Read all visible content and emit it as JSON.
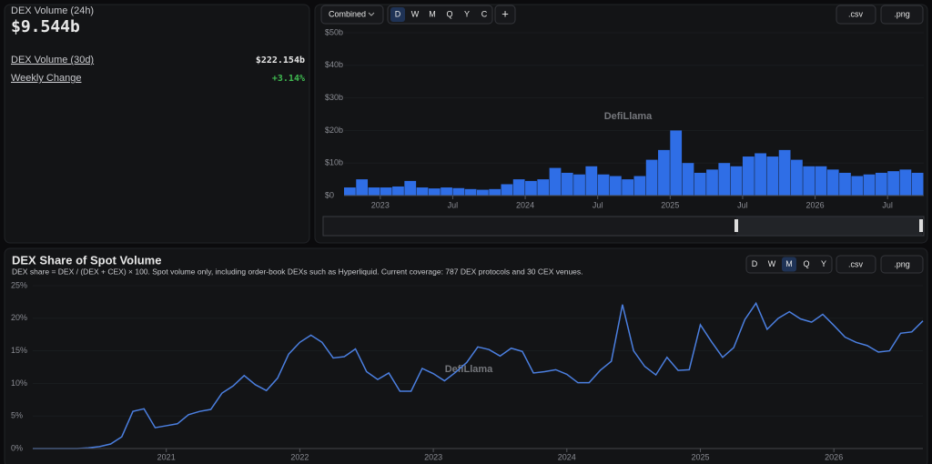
{
  "stats": {
    "label": "DEX Volume (24h)",
    "value": "$9.544b",
    "rows": [
      {
        "label": "DEX Volume (30d)",
        "value": "$222.154b"
      },
      {
        "label": "Weekly Change",
        "value": "+3.14%"
      }
    ]
  },
  "toolbar": {
    "dropdown": "Combined",
    "periods": [
      "D",
      "W",
      "M",
      "Q",
      "Y",
      "C"
    ],
    "selected": "D",
    "add": "+",
    "exports": [
      ".csv",
      ".png"
    ]
  },
  "watermark": "DefiLlama",
  "chart_data": [
    {
      "type": "bar",
      "color": "#2f6ee6",
      "x": [
        "2022-10",
        "2022-11",
        "2022-12",
        "2023-01",
        "2023-02",
        "2023-03",
        "2023-04",
        "2023-05",
        "2023-06",
        "2023-07",
        "2023-08",
        "2023-09",
        "2023-10",
        "2023-11",
        "2023-12",
        "2024-01",
        "2024-02",
        "2024-03",
        "2024-04",
        "2024-05",
        "2024-06",
        "2024-07",
        "2024-08",
        "2024-09",
        "2024-10",
        "2024-11",
        "2024-12",
        "2025-01",
        "2025-02",
        "2025-03",
        "2025-04",
        "2025-05",
        "2025-06",
        "2025-07",
        "2025-08",
        "2025-09",
        "2025-10",
        "2025-11",
        "2025-12",
        "2026-01",
        "2026-02",
        "2026-03",
        "2026-04",
        "2026-05",
        "2026-06",
        "2026-07",
        "2026-08",
        "2026-09"
      ],
      "values": [
        2.5,
        5,
        2.5,
        2.5,
        2.8,
        4.5,
        2.5,
        2.2,
        2.5,
        2.3,
        2,
        1.8,
        2,
        3.5,
        5,
        4.5,
        5,
        8.5,
        7,
        6.5,
        9,
        6.5,
        6,
        5,
        6,
        11,
        14,
        20,
        10,
        7,
        8,
        10,
        9,
        12,
        13,
        12,
        14,
        11,
        9,
        9,
        8,
        7,
        6,
        6.5,
        7,
        7.5,
        8,
        7
      ],
      "ylim": [
        0,
        50
      ],
      "yticks": [
        {
          "value": 0,
          "label": "$0"
        },
        {
          "value": 10,
          "label": "$10b"
        },
        {
          "value": 20,
          "label": "$20b"
        },
        {
          "value": 30,
          "label": "$30b"
        },
        {
          "value": 40,
          "label": "$40b"
        },
        {
          "value": 50,
          "label": "$50b"
        }
      ],
      "xticks": [
        {
          "value": "2023-01",
          "label": "2023"
        },
        {
          "value": "2023-07",
          "label": "Jul"
        },
        {
          "value": "2024-01",
          "label": "2024"
        },
        {
          "value": "2024-07",
          "label": "Jul"
        },
        {
          "value": "2025-01",
          "label": "2025"
        },
        {
          "value": "2025-07",
          "label": "Jul"
        },
        {
          "value": "2026-01",
          "label": "2026"
        },
        {
          "value": "2026-07",
          "label": "Jul"
        }
      ]
    },
    {
      "type": "line",
      "title": "DEX Share of Spot Volume",
      "subtitle": "DEX share = DEX / (DEX + CEX) × 100. Spot volume only, including order-book DEXs such as Hyperliquid. Current coverage: 787 DEX protocols and 30 CEX venues.",
      "toolbar": {
        "periods": [
          "D",
          "W",
          "M",
          "Q",
          "Y"
        ],
        "selected": "M",
        "exports": [
          ".csv",
          ".png"
        ]
      },
      "color": "#4b7fe0",
      "x": [
        "2020-01",
        "2020-02",
        "2020-03",
        "2020-04",
        "2020-05",
        "2020-06",
        "2020-07",
        "2020-08",
        "2020-09",
        "2020-10",
        "2020-11",
        "2020-12",
        "2021-01",
        "2021-02",
        "2021-03",
        "2021-04",
        "2021-05",
        "2021-06",
        "2021-07",
        "2021-08",
        "2021-09",
        "2021-10",
        "2021-11",
        "2021-12",
        "2022-01",
        "2022-02",
        "2022-03",
        "2022-04",
        "2022-05",
        "2022-06",
        "2022-07",
        "2022-08",
        "2022-09",
        "2022-10",
        "2022-11",
        "2022-12",
        "2023-01",
        "2023-02",
        "2023-03",
        "2023-04",
        "2023-05",
        "2023-06",
        "2023-07",
        "2023-08",
        "2023-09",
        "2023-10",
        "2023-11",
        "2023-12",
        "2024-01",
        "2024-02",
        "2024-03",
        "2024-04",
        "2024-05",
        "2024-06",
        "2024-07",
        "2024-08",
        "2024-09",
        "2024-10",
        "2024-11",
        "2024-12",
        "2025-01",
        "2025-02",
        "2025-03",
        "2025-04",
        "2025-05",
        "2025-06",
        "2025-07",
        "2025-08",
        "2025-09",
        "2025-10",
        "2025-11",
        "2025-12",
        "2026-01",
        "2026-02",
        "2026-03",
        "2026-04",
        "2026-05",
        "2026-06",
        "2026-07",
        "2026-08",
        "2026-09"
      ],
      "values": [
        0,
        0,
        0,
        0,
        0,
        0.1,
        0.3,
        0.7,
        1.8,
        5.7,
        6.1,
        3.2,
        3.5,
        3.8,
        5.2,
        5.7,
        6,
        8.5,
        9.6,
        11.2,
        9.8,
        8.9,
        10.8,
        14.5,
        16.3,
        17.4,
        16.3,
        13.9,
        14.1,
        15.3,
        11.8,
        10.6,
        11.6,
        8.8,
        8.8,
        12.3,
        11.5,
        10.4,
        11.7,
        13.2,
        15.6,
        15.2,
        14.2,
        15.4,
        14.9,
        11.6,
        11.8,
        12.1,
        11.4,
        10.1,
        10.1,
        12,
        13.4,
        22.1,
        15,
        12.6,
        11.3,
        14,
        12,
        12.1,
        19,
        16.4,
        14,
        15.5,
        19.8,
        22.3,
        18.3,
        20,
        21,
        19.9,
        19.4,
        20.6,
        18.9,
        17.1,
        16.3,
        15.8,
        14.8,
        15,
        17.7,
        17.9,
        19.6
      ],
      "ylim": [
        0,
        25
      ],
      "yticks": [
        {
          "value": 0,
          "label": "0%"
        },
        {
          "value": 5,
          "label": "5%"
        },
        {
          "value": 10,
          "label": "10%"
        },
        {
          "value": 15,
          "label": "15%"
        },
        {
          "value": 20,
          "label": "20%"
        },
        {
          "value": 25,
          "label": "25%"
        }
      ],
      "xticks": [
        {
          "value": "2021-01",
          "label": "2021"
        },
        {
          "value": "2022-01",
          "label": "2022"
        },
        {
          "value": "2023-01",
          "label": "2023"
        },
        {
          "value": "2024-01",
          "label": "2024"
        },
        {
          "value": "2025-01",
          "label": "2025"
        },
        {
          "value": "2026-01",
          "label": "2026"
        }
      ]
    }
  ]
}
